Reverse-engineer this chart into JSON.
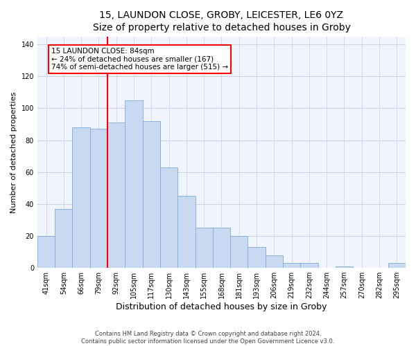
{
  "title": "15, LAUNDON CLOSE, GROBY, LEICESTER, LE6 0YZ",
  "subtitle": "Size of property relative to detached houses in Groby",
  "xlabel": "Distribution of detached houses by size in Groby",
  "ylabel": "Number of detached properties",
  "bar_labels": [
    "41sqm",
    "54sqm",
    "66sqm",
    "79sqm",
    "92sqm",
    "105sqm",
    "117sqm",
    "130sqm",
    "143sqm",
    "155sqm",
    "168sqm",
    "181sqm",
    "193sqm",
    "206sqm",
    "219sqm",
    "232sqm",
    "244sqm",
    "257sqm",
    "270sqm",
    "282sqm",
    "295sqm"
  ],
  "bar_values": [
    20,
    37,
    88,
    87,
    91,
    105,
    92,
    63,
    45,
    25,
    25,
    20,
    13,
    8,
    3,
    3,
    0,
    1,
    0,
    0,
    3
  ],
  "bar_color": "#c9d9f0",
  "bar_edge_color": "#7aace0",
  "vline_x": 3.5,
  "vline_color": "red",
  "annotation_text": "15 LAUNDON CLOSE: 84sqm\n← 24% of detached houses are smaller (167)\n74% of semi-detached houses are larger (515) →",
  "annotation_box_color": "white",
  "annotation_box_edge_color": "red",
  "ylim": [
    0,
    145
  ],
  "yticks": [
    0,
    20,
    40,
    60,
    80,
    100,
    120,
    140
  ],
  "footer_line1": "Contains HM Land Registry data © Crown copyright and database right 2024.",
  "footer_line2": "Contains public sector information licensed under the Open Government Licence v3.0.",
  "bg_color": "#ffffff",
  "plot_bg_color": "#f0f4ff",
  "title_fontsize": 10,
  "xlabel_fontsize": 9,
  "ylabel_fontsize": 8,
  "tick_fontsize": 7,
  "footer_fontsize": 6,
  "annotation_fontsize": 7.5
}
